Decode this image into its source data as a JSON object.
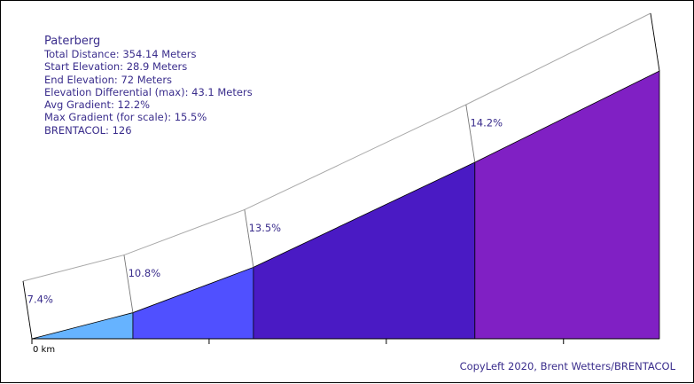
{
  "info": {
    "title": "Paterberg",
    "total_distance": "Total Distance: 354.14 Meters",
    "start_elevation": "Start Elevation: 28.9 Meters",
    "end_elevation": "End Elevation: 72 Meters",
    "elevation_differential": "Elevation Differential (max): 43.1 Meters",
    "avg_gradient": "Avg Gradient: 12.2%",
    "max_gradient": "Max Gradient (for scale): 15.5%",
    "brentacol": "BRENTACOL: 126"
  },
  "copyleft": "CopyLeft 2020, Brent Wetters/BRENTACOL",
  "chart_data": {
    "type": "area",
    "title": "Paterberg",
    "xlabel": "",
    "ylabel": "",
    "x_tick_labels": [
      "0 km"
    ],
    "segments": [
      {
        "label": "7.4%",
        "gradient": 7.4,
        "color": "#66b3ff"
      },
      {
        "label": "10.8%",
        "gradient": 10.8,
        "color": "#5050ff"
      },
      {
        "label": "13.5%",
        "gradient": 13.5,
        "color": "#4a1ac4"
      },
      {
        "label": "14.2%",
        "gradient": 14.2,
        "color": "#8020c4"
      }
    ],
    "distance_m": [
      0,
      57,
      125,
      250,
      354.14
    ],
    "elevation_m": [
      28.9,
      33.1,
      40.4,
      57.3,
      72
    ]
  }
}
